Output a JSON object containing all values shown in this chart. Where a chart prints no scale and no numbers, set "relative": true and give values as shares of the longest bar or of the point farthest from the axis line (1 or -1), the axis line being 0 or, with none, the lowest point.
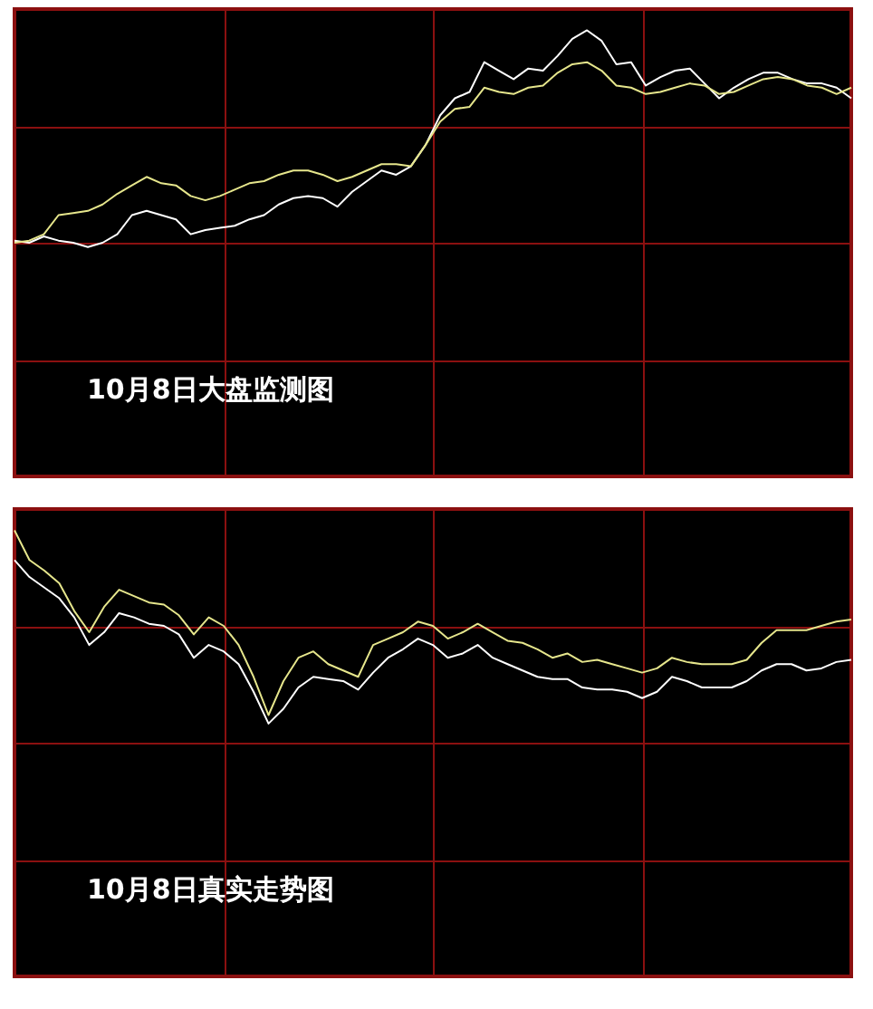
{
  "chart_data": [
    {
      "type": "line",
      "relative": true,
      "grid": true,
      "legend": false,
      "annotations": [
        "10月8日大盘监测图"
      ],
      "categories": [
        null,
        null,
        null,
        null,
        null,
        null,
        null,
        null,
        null,
        null,
        null,
        null,
        null,
        null,
        null,
        null,
        null,
        null,
        null,
        null,
        null,
        null,
        null,
        null,
        null,
        null,
        null,
        null,
        null,
        null,
        null,
        null,
        null,
        null,
        null,
        null,
        null,
        null,
        null,
        null,
        null,
        null,
        null,
        null,
        null,
        null,
        null,
        null,
        null,
        null,
        null,
        null,
        null,
        null,
        null,
        null,
        null,
        null
      ],
      "series": [
        {
          "color": "#ffffff",
          "values": [
            0.01,
            0,
            0.03,
            0.01,
            0,
            -0.02,
            0,
            0.04,
            0.13,
            0.15,
            0.13,
            0.11,
            0.04,
            0.06,
            0.07,
            0.08,
            0.11,
            0.13,
            0.18,
            0.21,
            0.22,
            0.21,
            0.17,
            0.24,
            0.29,
            0.34,
            0.32,
            0.36,
            0.46,
            0.6,
            0.68,
            0.71,
            0.85,
            0.81,
            0.77,
            0.82,
            0.81,
            0.88,
            0.96,
            1,
            0.95,
            0.84,
            0.85,
            0.74,
            0.78,
            0.81,
            0.82,
            0.75,
            0.68,
            0.73,
            0.77,
            0.8,
            0.8,
            0.77,
            0.75,
            0.75,
            0.73,
            0.68
          ]
        },
        {
          "color": "#e6e68c",
          "values": [
            0,
            0.01,
            0.04,
            0.13,
            0.14,
            0.15,
            0.18,
            0.23,
            0.27,
            0.31,
            0.28,
            0.27,
            0.22,
            0.2,
            0.22,
            0.25,
            0.28,
            0.29,
            0.32,
            0.34,
            0.34,
            0.32,
            0.29,
            0.31,
            0.34,
            0.37,
            0.37,
            0.36,
            0.46,
            0.57,
            0.63,
            0.64,
            0.73,
            0.71,
            0.7,
            0.73,
            0.74,
            0.8,
            0.84,
            0.85,
            0.81,
            0.74,
            0.73,
            0.7,
            0.71,
            0.73,
            0.75,
            0.74,
            0.7,
            0.71,
            0.74,
            0.77,
            0.78,
            0.77,
            0.74,
            0.73,
            0.7,
            0.73
          ]
        }
      ]
    },
    {
      "type": "line",
      "relative": true,
      "grid": true,
      "legend": false,
      "annotations": [
        "10月8日真实走势图"
      ],
      "categories": [
        null,
        null,
        null,
        null,
        null,
        null,
        null,
        null,
        null,
        null,
        null,
        null,
        null,
        null,
        null,
        null,
        null,
        null,
        null,
        null,
        null,
        null,
        null,
        null,
        null,
        null,
        null,
        null,
        null,
        null,
        null,
        null,
        null,
        null,
        null,
        null,
        null,
        null,
        null,
        null,
        null,
        null,
        null,
        null,
        null,
        null,
        null,
        null,
        null,
        null,
        null,
        null,
        null,
        null,
        null,
        null,
        null
      ],
      "series": [
        {
          "color": "#ffffff",
          "values": [
            0.86,
            0.78,
            0.73,
            0.68,
            0.59,
            0.46,
            0.52,
            0.61,
            0.59,
            0.56,
            0.55,
            0.51,
            0.4,
            0.46,
            0.43,
            0.37,
            0.24,
            0.09,
            0.16,
            0.26,
            0.31,
            0.3,
            0.29,
            0.25,
            0.33,
            0.4,
            0.44,
            0.49,
            0.46,
            0.4,
            0.42,
            0.46,
            0.4,
            0.37,
            0.34,
            0.31,
            0.3,
            0.3,
            0.26,
            0.25,
            0.25,
            0.24,
            0.21,
            0.24,
            0.31,
            0.29,
            0.26,
            0.26,
            0.26,
            0.29,
            0.34,
            0.37,
            0.37,
            0.34,
            0.35,
            0.38,
            0.39
          ]
        },
        {
          "color": "#e6e68c",
          "values": [
            1,
            0.86,
            0.81,
            0.75,
            0.62,
            0.52,
            0.64,
            0.72,
            0.69,
            0.66,
            0.65,
            0.6,
            0.51,
            0.59,
            0.55,
            0.46,
            0.31,
            0.13,
            0.29,
            0.4,
            0.43,
            0.37,
            0.34,
            0.31,
            0.46,
            0.49,
            0.52,
            0.57,
            0.55,
            0.49,
            0.52,
            0.56,
            0.52,
            0.48,
            0.47,
            0.44,
            0.4,
            0.42,
            0.38,
            0.39,
            0.37,
            0.35,
            0.33,
            0.35,
            0.4,
            0.38,
            0.37,
            0.37,
            0.37,
            0.39,
            0.47,
            0.53,
            0.53,
            0.53,
            0.55,
            0.57,
            0.58
          ]
        }
      ]
    }
  ]
}
